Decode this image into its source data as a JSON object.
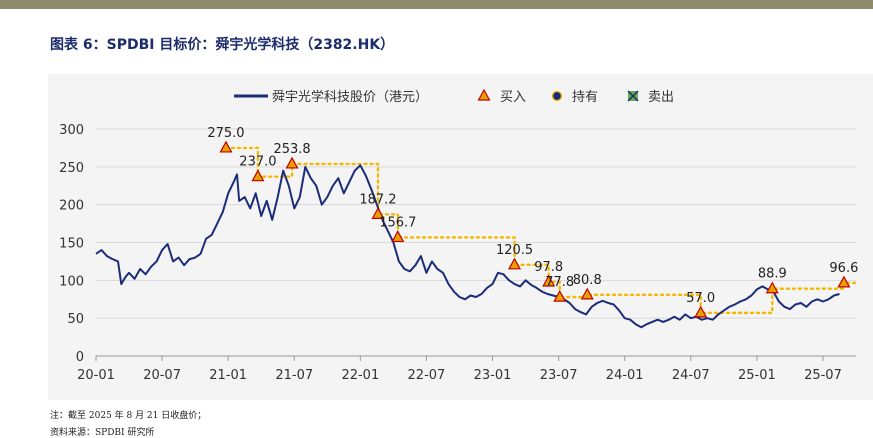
{
  "figure_title": "图表 6：SPDBI 目标价：舜宇光学科技（2382.HK）",
  "footnote": "注：截至 2025 年 8 月 21 日收盘价；",
  "footnote_2": "资料来源：SPDBI 研究所",
  "colors": {
    "line": "#1b2d7a",
    "target": "#f5b800",
    "buy": "#e8a000",
    "buy_edge": "#c00000",
    "hold": "#1b2d7a",
    "sell": "#6aa84f",
    "grid": "#d9d9d9"
  },
  "chart_data": {
    "type": "line",
    "title": "",
    "xlabel": "",
    "ylabel": "",
    "ylim": [
      0,
      300
    ],
    "yticks": [
      0,
      50,
      100,
      150,
      200,
      250,
      300
    ],
    "x_start": "2020-01",
    "x_end": "2025-09",
    "x_range_months": [
      0,
      69
    ],
    "x_tick_labels": [
      "20-01",
      "20-07",
      "21-01",
      "21-07",
      "22-01",
      "22-07",
      "23-01",
      "23-07",
      "24-01",
      "24-07",
      "25-01",
      "25-07"
    ],
    "x_tick_months": [
      0,
      6,
      12,
      18,
      24,
      30,
      36,
      42,
      48,
      54,
      60,
      66
    ],
    "legend": {
      "position": "top",
      "price": "舜宇光学科技股价（港元）",
      "buy": "买入",
      "hold": "持有",
      "sell": "卖出"
    },
    "series": [
      {
        "name": "舜宇光学科技股价（港元）",
        "points": [
          [
            0,
            135
          ],
          [
            0.5,
            140
          ],
          [
            1,
            132
          ],
          [
            1.5,
            128
          ],
          [
            2,
            125
          ],
          [
            2.3,
            95
          ],
          [
            2.7,
            105
          ],
          [
            3,
            110
          ],
          [
            3.5,
            102
          ],
          [
            4,
            115
          ],
          [
            4.5,
            108
          ],
          [
            5,
            118
          ],
          [
            5.5,
            125
          ],
          [
            6,
            140
          ],
          [
            6.5,
            148
          ],
          [
            7,
            125
          ],
          [
            7.5,
            130
          ],
          [
            8,
            120
          ],
          [
            8.5,
            128
          ],
          [
            9,
            130
          ],
          [
            9.5,
            135
          ],
          [
            10,
            155
          ],
          [
            10.5,
            160
          ],
          [
            11,
            175
          ],
          [
            11.5,
            190
          ],
          [
            12,
            215
          ],
          [
            12.5,
            230
          ],
          [
            12.8,
            240
          ],
          [
            13,
            205
          ],
          [
            13.5,
            210
          ],
          [
            14,
            195
          ],
          [
            14.5,
            215
          ],
          [
            15,
            185
          ],
          [
            15.5,
            205
          ],
          [
            16,
            180
          ],
          [
            16.5,
            210
          ],
          [
            17,
            245
          ],
          [
            17.5,
            225
          ],
          [
            18,
            195
          ],
          [
            18.5,
            210
          ],
          [
            19,
            250
          ],
          [
            19.5,
            235
          ],
          [
            20,
            225
          ],
          [
            20.5,
            200
          ],
          [
            21,
            210
          ],
          [
            21.5,
            225
          ],
          [
            22,
            235
          ],
          [
            22.5,
            215
          ],
          [
            23,
            230
          ],
          [
            23.5,
            245
          ],
          [
            24,
            252
          ],
          [
            24.5,
            238
          ],
          [
            25,
            220
          ],
          [
            25.5,
            200
          ],
          [
            26,
            180
          ],
          [
            26.5,
            165
          ],
          [
            27,
            150
          ],
          [
            27.5,
            125
          ],
          [
            28,
            115
          ],
          [
            28.5,
            112
          ],
          [
            29,
            120
          ],
          [
            29.5,
            132
          ],
          [
            30,
            110
          ],
          [
            30.5,
            125
          ],
          [
            31,
            115
          ],
          [
            31.5,
            110
          ],
          [
            32,
            95
          ],
          [
            32.5,
            85
          ],
          [
            33,
            78
          ],
          [
            33.5,
            75
          ],
          [
            34,
            80
          ],
          [
            34.5,
            78
          ],
          [
            35,
            82
          ],
          [
            35.5,
            90
          ],
          [
            36,
            95
          ],
          [
            36.5,
            110
          ],
          [
            37,
            108
          ],
          [
            37.5,
            100
          ],
          [
            38,
            95
          ],
          [
            38.5,
            92
          ],
          [
            39,
            100
          ],
          [
            39.5,
            94
          ],
          [
            40,
            90
          ],
          [
            40.5,
            85
          ],
          [
            41,
            82
          ],
          [
            41.5,
            80
          ],
          [
            42,
            78
          ],
          [
            42.5,
            75
          ],
          [
            43,
            70
          ],
          [
            43.5,
            62
          ],
          [
            44,
            58
          ],
          [
            44.5,
            55
          ],
          [
            45,
            65
          ],
          [
            45.5,
            70
          ],
          [
            46,
            73
          ],
          [
            46.5,
            70
          ],
          [
            47,
            68
          ],
          [
            47.5,
            60
          ],
          [
            48,
            50
          ],
          [
            48.5,
            48
          ],
          [
            49,
            42
          ],
          [
            49.5,
            38
          ],
          [
            50,
            42
          ],
          [
            50.5,
            45
          ],
          [
            51,
            48
          ],
          [
            51.5,
            45
          ],
          [
            52,
            48
          ],
          [
            52.5,
            52
          ],
          [
            53,
            48
          ],
          [
            53.5,
            55
          ],
          [
            54,
            50
          ],
          [
            54.5,
            52
          ],
          [
            55,
            48
          ],
          [
            55.5,
            50
          ],
          [
            56,
            48
          ],
          [
            56.5,
            55
          ],
          [
            57,
            60
          ],
          [
            57.5,
            65
          ],
          [
            58,
            68
          ],
          [
            58.5,
            72
          ],
          [
            59,
            75
          ],
          [
            59.5,
            80
          ],
          [
            60,
            88
          ],
          [
            60.5,
            92
          ],
          [
            61,
            88
          ],
          [
            61.5,
            85
          ],
          [
            62,
            72
          ],
          [
            62.5,
            65
          ],
          [
            63,
            62
          ],
          [
            63.5,
            68
          ],
          [
            64,
            70
          ],
          [
            64.5,
            65
          ],
          [
            65,
            72
          ],
          [
            65.5,
            75
          ],
          [
            66,
            72
          ],
          [
            66.5,
            75
          ],
          [
            67,
            80
          ],
          [
            67.5,
            82
          ]
        ]
      }
    ],
    "target_prices": [
      {
        "month": 11.8,
        "value": 275.0,
        "label": "275.0",
        "rating": "buy"
      },
      {
        "month": 14.7,
        "value": 237.0,
        "label": "237.0",
        "rating": "buy"
      },
      {
        "month": 17.8,
        "value": 253.8,
        "label": "253.8",
        "rating": "buy"
      },
      {
        "month": 25.6,
        "value": 187.2,
        "label": "187.2",
        "rating": "buy"
      },
      {
        "month": 27.4,
        "value": 156.7,
        "label": "156.7",
        "rating": "buy"
      },
      {
        "month": 38.0,
        "value": 120.5,
        "label": "120.5",
        "rating": "buy"
      },
      {
        "month": 41.1,
        "value": 97.8,
        "label": "97.8",
        "rating": "buy"
      },
      {
        "month": 42.1,
        "value": 77.8,
        "label": "77.8",
        "rating": "buy"
      },
      {
        "month": 44.6,
        "value": 80.8,
        "label": "80.8",
        "rating": "buy"
      },
      {
        "month": 54.9,
        "value": 57.0,
        "label": "57.0",
        "rating": "buy"
      },
      {
        "month": 61.4,
        "value": 88.9,
        "label": "88.9",
        "rating": "buy"
      },
      {
        "month": 67.9,
        "value": 96.6,
        "label": "96.6",
        "rating": "buy"
      }
    ],
    "target_line_end_month": 69
  }
}
